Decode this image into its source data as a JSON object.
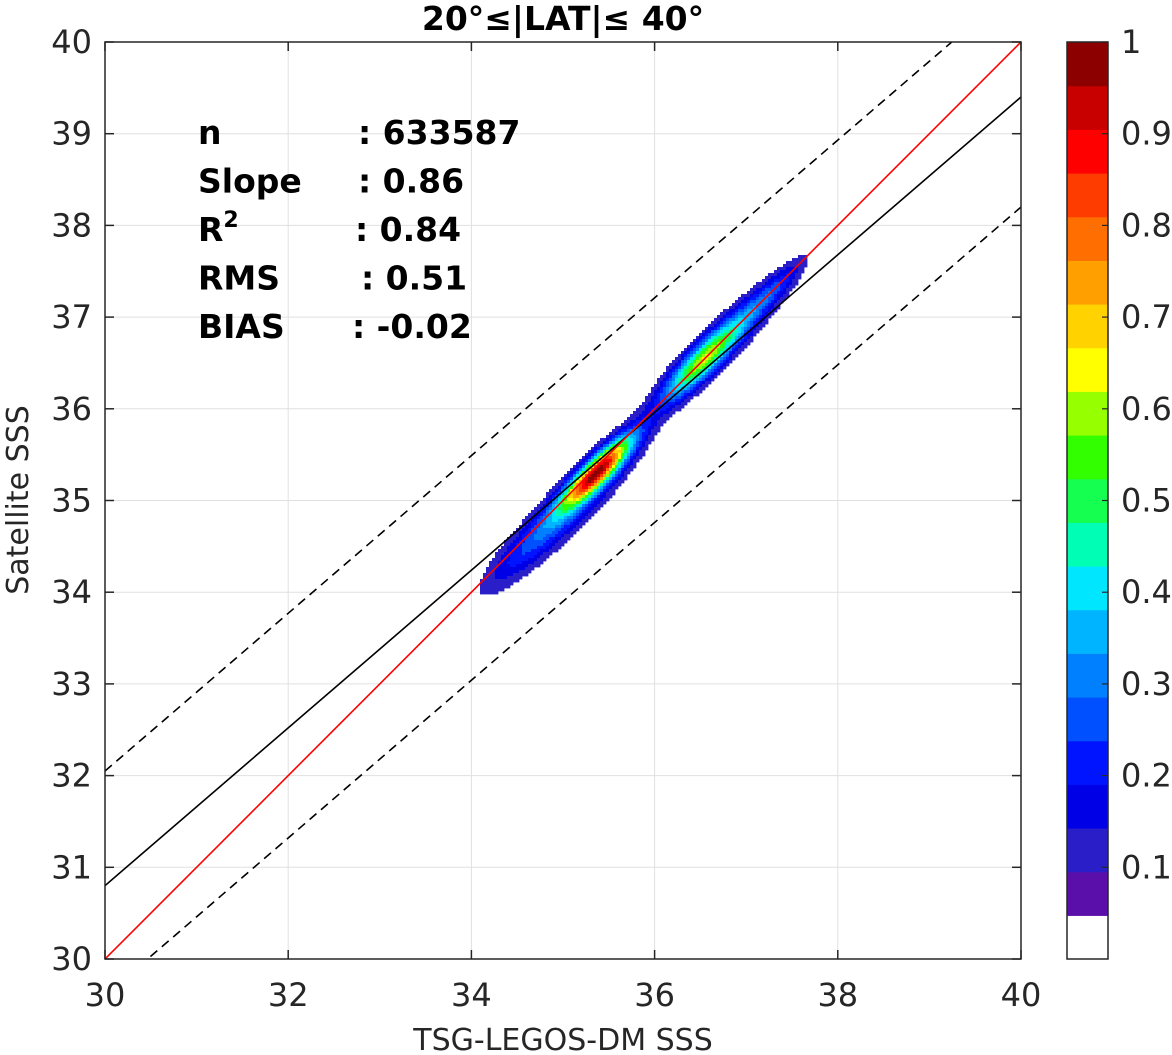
{
  "chart_data": {
    "type": "heatmap",
    "subtype": "density-contour-scatter",
    "title": "20°≤|LAT|≤ 40°",
    "xlabel": "TSG-LEGOS-DM SSS",
    "ylabel": "Satellite SSS",
    "xlim": [
      30,
      40
    ],
    "ylim": [
      30,
      40
    ],
    "xticks": [
      30,
      32,
      34,
      36,
      38,
      40
    ],
    "yticks": [
      30,
      31,
      32,
      33,
      34,
      35,
      36,
      37,
      38,
      39,
      40
    ],
    "grid": true,
    "stats": [
      {
        "key": "n",
        "value": ": 633587"
      },
      {
        "key": "Slope",
        "value": ": 0.86"
      },
      {
        "key": "R",
        "sup": "2",
        "value": ": 0.84"
      },
      {
        "key": "RMS",
        "value": ": 0.51"
      },
      {
        "key": "BIAS",
        "value": ": -0.02"
      }
    ],
    "lines": {
      "one_to_one": {
        "slope": 1.0,
        "intercept": 0.0,
        "color": "#ff0000"
      },
      "fit": {
        "slope": 0.86,
        "intercept": 5.0,
        "color": "#000000"
      },
      "fit_upper": {
        "slope": 0.86,
        "intercept": 6.25,
        "color": "#000000",
        "style": "dashed"
      },
      "fit_lower": {
        "slope": 0.86,
        "intercept": 3.8,
        "color": "#000000",
        "style": "dashed"
      }
    },
    "density": {
      "peaks": [
        {
          "x": 35.38,
          "y": 35.32,
          "sx": 0.26,
          "sy": 0.26,
          "rho": 0.88,
          "w": 1.0
        },
        {
          "x": 35.1,
          "y": 34.95,
          "sx": 0.45,
          "sy": 0.45,
          "rho": 0.9,
          "w": 0.25
        },
        {
          "x": 34.6,
          "y": 34.5,
          "sx": 0.35,
          "sy": 0.35,
          "rho": 0.88,
          "w": 0.12
        },
        {
          "x": 36.5,
          "y": 36.5,
          "sx": 0.3,
          "sy": 0.3,
          "rho": 0.88,
          "w": 0.56
        },
        {
          "x": 36.9,
          "y": 36.9,
          "sx": 0.4,
          "sy": 0.4,
          "rho": 0.92,
          "w": 0.25
        },
        {
          "x": 37.3,
          "y": 37.3,
          "sx": 0.2,
          "sy": 0.2,
          "rho": 0.9,
          "w": 0.12
        }
      ]
    },
    "colorbar": {
      "ticks": [
        "0.1",
        "0.2",
        "0.3",
        "0.4",
        "0.5",
        "0.6",
        "0.7",
        "0.8",
        "0.9",
        "1"
      ],
      "tick_values": [
        0.1,
        0.2,
        0.3,
        0.4,
        0.5,
        0.6,
        0.7,
        0.8,
        0.9,
        1.0
      ],
      "levels": [
        0,
        0.05,
        0.1,
        0.15,
        0.2,
        0.25,
        0.3,
        0.35,
        0.4,
        0.45,
        0.5,
        0.55,
        0.6,
        0.65,
        0.7,
        0.75,
        0.8,
        0.85,
        0.9,
        0.95,
        1.0
      ],
      "colors": [
        "#ffffff",
        "#5a0faa",
        "#2a1ec8",
        "#0000e6",
        "#0014ff",
        "#0050ff",
        "#0080ff",
        "#00b4ff",
        "#00e6ff",
        "#00ffb4",
        "#14ff50",
        "#32ff00",
        "#96ff00",
        "#ffff00",
        "#ffd200",
        "#ffa000",
        "#ff6e00",
        "#ff3c00",
        "#ff0000",
        "#c80000",
        "#8c0000"
      ]
    }
  }
}
